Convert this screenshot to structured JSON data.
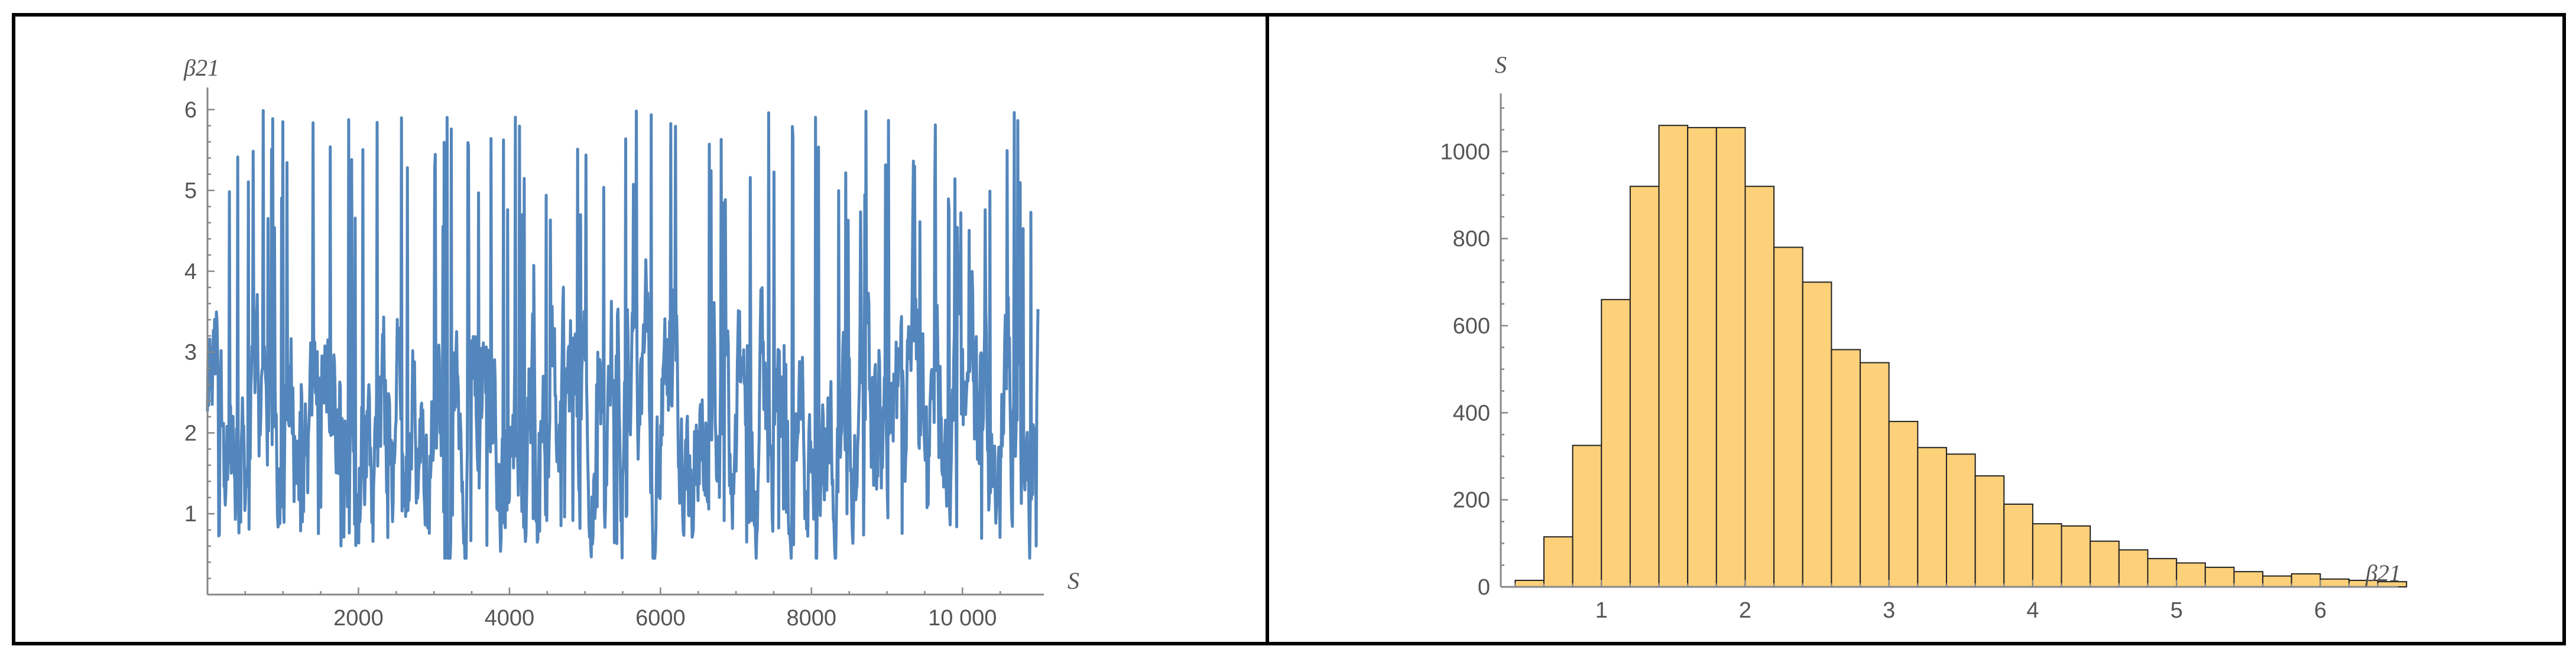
{
  "colors": {
    "trace": "#4a7fb8",
    "bar_fill": "#fdd07a",
    "bar_stroke": "#222222",
    "axis": "#888888"
  },
  "chart_data": [
    {
      "type": "line",
      "title": "",
      "xlabel": "S",
      "ylabel": "β21",
      "xlim": [
        0,
        11000
      ],
      "ylim": [
        0,
        6.2
      ],
      "xticks": [
        2000,
        4000,
        6000,
        8000,
        10000
      ],
      "xtick_labels": [
        "2000",
        "4000",
        "6000",
        "8000",
        "10 000"
      ],
      "yticks": [
        1,
        2,
        3,
        4,
        5,
        6
      ],
      "ytick_labels": [
        "1",
        "2",
        "3",
        "4",
        "5",
        "6"
      ],
      "n_samples": 11000,
      "value_range": [
        0.45,
        6.0
      ],
      "typical_band": [
        1.2,
        3.5
      ],
      "series": [
        {
          "values_description_only": false,
          "x": [],
          "y": []
        }
      ],
      "grid": false
    },
    {
      "type": "bar",
      "title": "",
      "xlabel": "β21",
      "ylabel": "S",
      "xlim": [
        0.3,
        6.5
      ],
      "ylim": [
        0,
        1120
      ],
      "xticks": [
        1,
        2,
        3,
        4,
        5,
        6
      ],
      "xtick_labels": [
        "1",
        "2",
        "3",
        "4",
        "5",
        "6"
      ],
      "yticks": [
        0,
        200,
        400,
        600,
        800,
        1000
      ],
      "ytick_labels": [
        "0",
        "200",
        "400",
        "600",
        "800",
        "1000"
      ],
      "bin_start": 0.4,
      "bin_width": 0.2,
      "values": [
        15,
        115,
        325,
        660,
        920,
        1060,
        1055,
        1055,
        920,
        780,
        700,
        545,
        515,
        380,
        320,
        305,
        255,
        190,
        145,
        140,
        105,
        85,
        65,
        55,
        45,
        35,
        25,
        30,
        18,
        15,
        12
      ],
      "grid": false
    }
  ]
}
